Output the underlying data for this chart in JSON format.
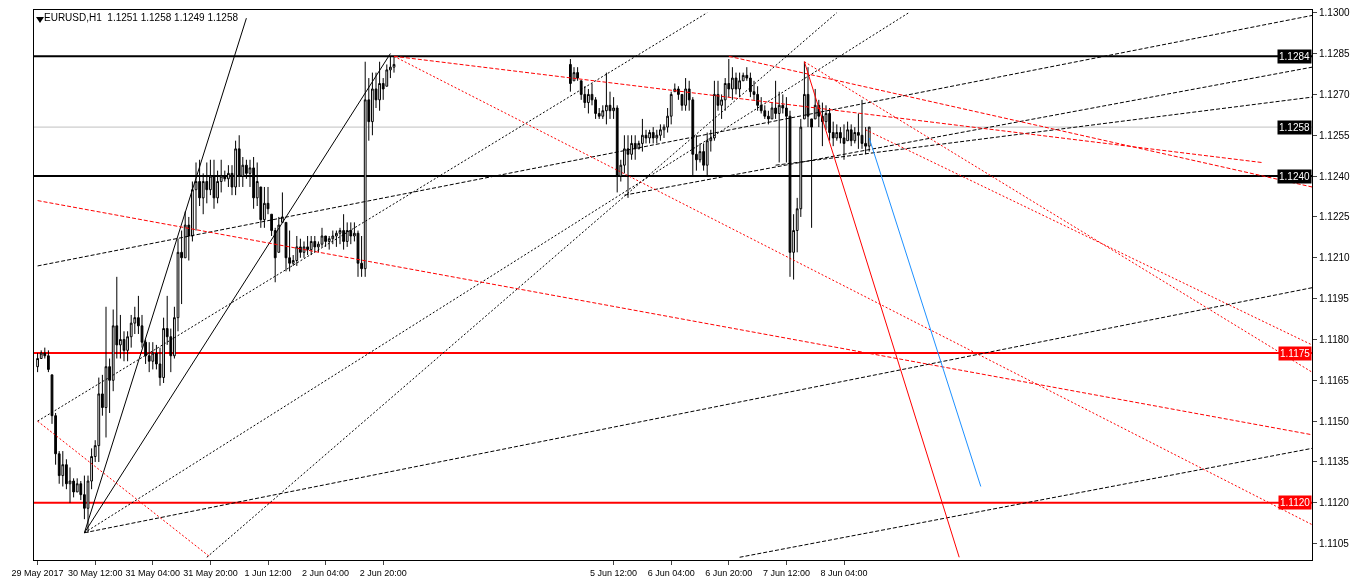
{
  "chart_data": {
    "type": "candlestick",
    "title": "EURUSD,H1  1.1251 1.1258 1.1249 1.1258",
    "color": "#000000",
    "x": [
      "2017-05-29T20:00",
      "2017-05-29T21:00",
      "2017-05-29T22:00",
      "2017-05-29T23:00",
      "2017-05-30T00:00",
      "2017-05-30T01:00",
      "2017-05-30T02:00",
      "2017-05-30T03:00",
      "2017-05-30T04:00",
      "2017-05-30T05:00",
      "2017-05-30T06:00",
      "2017-05-30T07:00",
      "2017-05-30T08:00",
      "2017-05-30T09:00",
      "2017-05-30T10:00",
      "2017-05-30T11:00",
      "2017-05-30T12:00",
      "2017-05-30T13:00",
      "2017-05-30T14:00",
      "2017-05-30T15:00",
      "2017-05-30T16:00",
      "2017-05-30T17:00",
      "2017-05-30T18:00",
      "2017-05-30T19:00",
      "2017-05-30T20:00",
      "2017-05-30T21:00",
      "2017-05-30T22:00",
      "2017-05-30T23:00",
      "2017-05-31T00:00",
      "2017-05-31T01:00",
      "2017-05-31T02:00",
      "2017-05-31T03:00",
      "2017-05-31T04:00",
      "2017-05-31T05:00",
      "2017-05-31T06:00",
      "2017-05-31T07:00",
      "2017-05-31T08:00",
      "2017-05-31T09:00",
      "2017-05-31T10:00",
      "2017-05-31T11:00",
      "2017-05-31T12:00",
      "2017-05-31T13:00",
      "2017-05-31T14:00",
      "2017-05-31T15:00",
      "2017-05-31T16:00",
      "2017-05-31T17:00",
      "2017-05-31T18:00",
      "2017-05-31T19:00",
      "2017-05-31T20:00",
      "2017-05-31T21:00",
      "2017-05-31T22:00",
      "2017-05-31T23:00",
      "2017-06-01T00:00",
      "2017-06-01T01:00",
      "2017-06-01T02:00",
      "2017-06-01T03:00",
      "2017-06-01T04:00",
      "2017-06-01T05:00",
      "2017-06-01T06:00",
      "2017-06-01T07:00",
      "2017-06-01T08:00",
      "2017-06-01T09:00",
      "2017-06-01T10:00",
      "2017-06-01T11:00",
      "2017-06-01T12:00",
      "2017-06-01T13:00",
      "2017-06-01T14:00",
      "2017-06-01T15:00",
      "2017-06-01T16:00",
      "2017-06-01T17:00",
      "2017-06-01T18:00",
      "2017-06-01T19:00",
      "2017-06-01T20:00",
      "2017-06-01T21:00",
      "2017-06-01T22:00",
      "2017-06-01T23:00",
      "2017-06-02T00:00",
      "2017-06-02T01:00",
      "2017-06-02T02:00",
      "2017-06-02T03:00",
      "2017-06-02T04:00",
      "2017-06-02T05:00",
      "2017-06-02T06:00",
      "2017-06-02T07:00",
      "2017-06-02T08:00",
      "2017-06-02T09:00",
      "2017-06-02T10:00",
      "2017-06-02T11:00",
      "2017-06-02T12:00",
      "2017-06-02T13:00",
      "2017-06-02T14:00",
      "2017-06-02T15:00",
      "2017-06-02T16:00",
      "2017-06-02T17:00",
      "2017-06-02T18:00",
      "2017-06-02T19:00",
      "2017-06-02T20:00",
      "2017-06-02T21:00",
      "2017-06-02T22:00",
      "2017-06-02T23:00",
      "2017-06-05T00:00",
      "2017-06-05T01:00",
      "2017-06-05T02:00",
      "2017-06-05T03:00",
      "2017-06-05T04:00",
      "2017-06-05T05:00",
      "2017-06-05T06:00",
      "2017-06-05T07:00",
      "2017-06-05T08:00",
      "2017-06-05T09:00",
      "2017-06-05T10:00",
      "2017-06-05T11:00",
      "2017-06-05T12:00",
      "2017-06-05T13:00",
      "2017-06-05T14:00",
      "2017-06-05T15:00",
      "2017-06-05T16:00",
      "2017-06-05T17:00",
      "2017-06-05T18:00",
      "2017-06-05T19:00",
      "2017-06-05T20:00",
      "2017-06-05T21:00",
      "2017-06-05T22:00",
      "2017-06-05T23:00",
      "2017-06-06T00:00",
      "2017-06-06T01:00",
      "2017-06-06T02:00",
      "2017-06-06T03:00",
      "2017-06-06T04:00",
      "2017-06-06T05:00",
      "2017-06-06T06:00",
      "2017-06-06T07:00",
      "2017-06-06T08:00",
      "2017-06-06T09:00",
      "2017-06-06T10:00",
      "2017-06-06T11:00",
      "2017-06-06T12:00",
      "2017-06-06T13:00",
      "2017-06-06T14:00",
      "2017-06-06T15:00",
      "2017-06-06T16:00",
      "2017-06-06T17:00",
      "2017-06-06T18:00",
      "2017-06-06T19:00",
      "2017-06-06T20:00",
      "2017-06-06T21:00",
      "2017-06-06T22:00",
      "2017-06-06T23:00",
      "2017-06-07T00:00",
      "2017-06-07T01:00",
      "2017-06-07T02:00",
      "2017-06-07T03:00",
      "2017-06-07T04:00",
      "2017-06-07T05:00",
      "2017-06-07T06:00",
      "2017-06-07T07:00",
      "2017-06-07T08:00",
      "2017-06-07T09:00",
      "2017-06-07T10:00",
      "2017-06-07T11:00",
      "2017-06-07T12:00",
      "2017-06-07T13:00",
      "2017-06-07T14:00",
      "2017-06-07T15:00",
      "2017-06-07T16:00",
      "2017-06-07T17:00",
      "2017-06-07T18:00",
      "2017-06-07T19:00",
      "2017-06-07T20:00",
      "2017-06-07T21:00",
      "2017-06-07T22:00",
      "2017-06-07T23:00",
      "2017-06-08T00:00",
      "2017-06-08T01:00",
      "2017-06-08T02:00",
      "2017-06-08T03:00",
      "2017-06-08T04:00",
      "2017-06-08T05:00",
      "2017-06-08T06:00",
      "2017-06-08T07:00",
      "2017-06-08T08:00",
      "2017-06-08T09:00",
      "2017-06-08T10:00",
      "2017-06-08T11:00"
    ],
    "ohlc": [
      [
        1.117,
        1.1175,
        1.1168,
        1.1173
      ],
      [
        1.1173,
        1.1176,
        1.1173,
        1.1175
      ],
      [
        1.1175,
        1.1177,
        1.1173,
        1.1174
      ],
      [
        1.1174,
        1.1176,
        1.1168,
        1.1169
      ],
      [
        1.1167,
        1.1167,
        1.1149,
        1.1152
      ],
      [
        1.1152,
        1.1153,
        1.1134,
        1.1138
      ],
      [
        1.1138,
        1.1139,
        1.1127,
        1.113
      ],
      [
        1.113,
        1.1139,
        1.1126,
        1.1134
      ],
      [
        1.1134,
        1.1136,
        1.1125,
        1.1127
      ],
      [
        1.1127,
        1.1133,
        1.112,
        1.1128
      ],
      [
        1.1128,
        1.1129,
        1.1122,
        1.1124
      ],
      [
        1.1124,
        1.1129,
        1.1124,
        1.1127
      ],
      [
        1.1127,
        1.1128,
        1.1121,
        1.1123
      ],
      [
        1.1123,
        1.113,
        1.1114,
        1.1118
      ],
      [
        1.1118,
        1.113,
        1.1109,
        1.1128
      ],
      [
        1.1128,
        1.114,
        1.1125,
        1.1137
      ],
      [
        1.1137,
        1.1143,
        1.1135,
        1.1141
      ],
      [
        1.1141,
        1.1166,
        1.1135,
        1.116
      ],
      [
        1.116,
        1.1167,
        1.1152,
        1.1155
      ],
      [
        1.1155,
        1.1192,
        1.1144,
        1.117
      ],
      [
        1.117,
        1.1173,
        1.1153,
        1.1165
      ],
      [
        1.1165,
        1.1191,
        1.1161,
        1.1185
      ],
      [
        1.1185,
        1.1203,
        1.1173,
        1.1178
      ],
      [
        1.1178,
        1.1189,
        1.1173,
        1.118
      ],
      [
        1.118,
        1.1183,
        1.1172,
        1.1176
      ],
      [
        1.1176,
        1.1183,
        1.1172,
        1.1181
      ],
      [
        1.1181,
        1.1189,
        1.1177,
        1.1186
      ],
      [
        1.1186,
        1.1192,
        1.1182,
        1.1188
      ],
      [
        1.1188,
        1.1196,
        1.1182,
        1.1185
      ],
      [
        1.1185,
        1.1189,
        1.1177,
        1.1179
      ],
      [
        1.1179,
        1.118,
        1.1171,
        1.1174
      ],
      [
        1.1174,
        1.1179,
        1.1168,
        1.1172
      ],
      [
        1.1172,
        1.1179,
        1.1169,
        1.1175
      ],
      [
        1.1175,
        1.1178,
        1.1169,
        1.1171
      ],
      [
        1.1171,
        1.1177,
        1.1163,
        1.1166
      ],
      [
        1.1166,
        1.1188,
        1.1164,
        1.1184
      ],
      [
        1.1184,
        1.1196,
        1.1178,
        1.1181
      ],
      [
        1.1181,
        1.1184,
        1.1168,
        1.1174
      ],
      [
        1.1174,
        1.1192,
        1.1173,
        1.1188
      ],
      [
        1.1188,
        1.1217,
        1.1183,
        1.1212
      ],
      [
        1.1212,
        1.122,
        1.1193,
        1.121
      ],
      [
        1.121,
        1.1227,
        1.121,
        1.1222
      ],
      [
        1.1222,
        1.1225,
        1.1209,
        1.1218
      ],
      [
        1.1218,
        1.1238,
        1.1216,
        1.1235
      ],
      [
        1.1235,
        1.1245,
        1.122,
        1.1238
      ],
      [
        1.1238,
        1.1246,
        1.1229,
        1.1232
      ],
      [
        1.1232,
        1.1241,
        1.1226,
        1.1238
      ],
      [
        1.1238,
        1.1245,
        1.123,
        1.1235
      ],
      [
        1.1235,
        1.1246,
        1.1233,
        1.124
      ],
      [
        1.124,
        1.1246,
        1.1228,
        1.1232
      ],
      [
        1.1232,
        1.1242,
        1.123,
        1.1238
      ],
      [
        1.1238,
        1.1246,
        1.1234,
        1.124
      ],
      [
        1.124,
        1.1242,
        1.1238,
        1.1239
      ],
      [
        1.1239,
        1.1244,
        1.1236,
        1.1241
      ],
      [
        1.1241,
        1.1244,
        1.1233,
        1.1236
      ],
      [
        1.1236,
        1.1253,
        1.1233,
        1.125
      ],
      [
        1.125,
        1.1255,
        1.1236,
        1.124
      ],
      [
        1.124,
        1.1247,
        1.1236,
        1.1244
      ],
      [
        1.1244,
        1.1246,
        1.1239,
        1.1241
      ],
      [
        1.1241,
        1.1246,
        1.1236,
        1.1243
      ],
      [
        1.1243,
        1.1247,
        1.1228,
        1.1232
      ],
      [
        1.1232,
        1.1245,
        1.1229,
        1.1238
      ],
      [
        1.1236,
        1.1236,
        1.1221,
        1.1224
      ],
      [
        1.1224,
        1.1236,
        1.1221,
        1.123
      ],
      [
        1.123,
        1.1236,
        1.1226,
        1.1228
      ],
      [
        1.1226,
        1.1226,
        1.1218,
        1.122
      ],
      [
        1.122,
        1.1221,
        1.1201,
        1.121
      ],
      [
        1.1212,
        1.1225,
        1.1212,
        1.1222
      ],
      [
        1.1223,
        1.1234,
        1.1223,
        1.1225
      ],
      [
        1.1223,
        1.1223,
        1.1205,
        1.121
      ],
      [
        1.121,
        1.122,
        1.1205,
        1.1208
      ],
      [
        1.1208,
        1.1211,
        1.1207,
        1.1209
      ],
      [
        1.1209,
        1.1218,
        1.1207,
        1.1214
      ],
      [
        1.1214,
        1.1217,
        1.121,
        1.1212
      ],
      [
        1.1212,
        1.1216,
        1.121,
        1.1214
      ],
      [
        1.1214,
        1.1218,
        1.1211,
        1.1213
      ],
      [
        1.1213,
        1.1218,
        1.1211,
        1.1216
      ],
      [
        1.1216,
        1.1218,
        1.1212,
        1.1214
      ],
      [
        1.1214,
        1.1216,
        1.1212,
        1.1215
      ],
      [
        1.1215,
        1.1221,
        1.1214,
        1.1218
      ],
      [
        1.1218,
        1.1218,
        1.1214,
        1.1216
      ],
      [
        1.1216,
        1.1218,
        1.1213,
        1.1217
      ],
      [
        1.1217,
        1.122,
        1.1215,
        1.1218
      ],
      [
        1.1218,
        1.122,
        1.1214,
        1.1219
      ],
      [
        1.1219,
        1.1221,
        1.1215,
        1.122
      ],
      [
        1.122,
        1.1226,
        1.1213,
        1.1216
      ],
      [
        1.1216,
        1.1223,
        1.1214,
        1.122
      ],
      [
        1.122,
        1.1223,
        1.1215,
        1.1218
      ],
      [
        1.1218,
        1.1223,
        1.1216,
        1.1219
      ],
      [
        1.1219,
        1.122,
        1.1203,
        1.1208
      ],
      [
        1.1208,
        1.1218,
        1.1203,
        1.1206
      ],
      [
        1.1206,
        1.1282,
        1.1203,
        1.1268
      ],
      [
        1.1268,
        1.1276,
        1.1253,
        1.126
      ],
      [
        1.126,
        1.1278,
        1.1255,
        1.1272
      ],
      [
        1.1272,
        1.1278,
        1.1265,
        1.1268
      ],
      [
        1.1268,
        1.1282,
        1.1264,
        1.1274
      ],
      [
        1.1274,
        1.1276,
        1.1268,
        1.1272
      ],
      [
        1.1273,
        1.1281,
        1.1273,
        1.1279
      ],
      [
        1.1279,
        1.1284,
        1.1276,
        1.128
      ],
      [
        1.128,
        1.1284,
        1.1278,
        1.1281
      ],
      [
        1.1281,
        1.1283,
        1.1271,
        1.1274
      ],
      [
        1.1275,
        1.128,
        1.1275,
        1.1278
      ],
      [
        1.1278,
        1.128,
        1.1275,
        1.1276
      ],
      [
        1.1275,
        1.1275,
        1.1268,
        1.127
      ],
      [
        1.127,
        1.1273,
        1.1265,
        1.1267
      ],
      [
        1.1267,
        1.1272,
        1.1263,
        1.127
      ],
      [
        1.127,
        1.1274,
        1.1266,
        1.1268
      ],
      [
        1.1268,
        1.1269,
        1.1261,
        1.1263
      ],
      [
        1.1263,
        1.1265,
        1.1261,
        1.1262
      ],
      [
        1.1262,
        1.1266,
        1.1261,
        1.1264
      ],
      [
        1.1264,
        1.1278,
        1.1259,
        1.1266
      ],
      [
        1.1266,
        1.1271,
        1.1261,
        1.1264
      ],
      [
        1.1264,
        1.1269,
        1.1261,
        1.1265
      ],
      [
        1.1265,
        1.1266,
        1.1234,
        1.124
      ],
      [
        1.124,
        1.1246,
        1.1238,
        1.1244
      ],
      [
        1.1244,
        1.1255,
        1.1241,
        1.125
      ],
      [
        1.125,
        1.1255,
        1.1232,
        1.1248
      ],
      [
        1.1248,
        1.1255,
        1.1246,
        1.1252
      ],
      [
        1.1252,
        1.1255,
        1.1246,
        1.125
      ],
      [
        1.125,
        1.1253,
        1.125,
        1.1252
      ],
      [
        1.1252,
        1.1261,
        1.1249,
        1.1255
      ],
      [
        1.1255,
        1.1257,
        1.1252,
        1.1254
      ],
      [
        1.1254,
        1.1257,
        1.1252,
        1.1256
      ],
      [
        1.1256,
        1.1258,
        1.1252,
        1.1254
      ],
      [
        1.1254,
        1.1257,
        1.1252,
        1.1255
      ],
      [
        1.1255,
        1.1259,
        1.1253,
        1.1257
      ],
      [
        1.1257,
        1.1259,
        1.1254,
        1.1258
      ],
      [
        1.1258,
        1.1265,
        1.1256,
        1.1262
      ],
      [
        1.1262,
        1.1271,
        1.1259,
        1.127
      ],
      [
        1.1271,
        1.1274,
        1.1271,
        1.1272
      ],
      [
        1.1272,
        1.1273,
        1.1268,
        1.127
      ],
      [
        1.127,
        1.127,
        1.1264,
        1.1266
      ],
      [
        1.1266,
        1.1276,
        1.1264,
        1.1272
      ],
      [
        1.1272,
        1.1275,
        1.1264,
        1.1268
      ],
      [
        1.1268,
        1.1269,
        1.124,
        1.1248
      ],
      [
        1.1248,
        1.1255,
        1.1242,
        1.1246
      ],
      [
        1.1246,
        1.1252,
        1.1245,
        1.1249
      ],
      [
        1.1249,
        1.1252,
        1.1242,
        1.1244
      ],
      [
        1.1244,
        1.1256,
        1.124,
        1.1253
      ],
      [
        1.1253,
        1.1257,
        1.1249,
        1.1254
      ],
      [
        1.1254,
        1.1275,
        1.1253,
        1.127
      ],
      [
        1.127,
        1.1275,
        1.1264,
        1.1266
      ],
      [
        1.1266,
        1.127,
        1.1261,
        1.1268
      ],
      [
        1.1268,
        1.1276,
        1.1264,
        1.1274
      ],
      [
        1.1274,
        1.1283,
        1.1269,
        1.1272
      ],
      [
        1.1272,
        1.128,
        1.1268,
        1.1276
      ],
      [
        1.1276,
        1.1278,
        1.127,
        1.1272
      ],
      [
        1.1272,
        1.1278,
        1.1269,
        1.1275
      ],
      [
        1.1275,
        1.1278,
        1.1275,
        1.1277
      ],
      [
        1.1277,
        1.128,
        1.1275,
        1.1276
      ],
      [
        1.1276,
        1.1278,
        1.1269,
        1.1271
      ],
      [
        1.1271,
        1.1275,
        1.1268,
        1.127
      ],
      [
        1.127,
        1.1273,
        1.1264,
        1.1266
      ],
      [
        1.1266,
        1.1269,
        1.1263,
        1.1264
      ],
      [
        1.1264,
        1.1266,
        1.1261,
        1.1262
      ],
      [
        1.1262,
        1.1264,
        1.1259,
        1.1261
      ],
      [
        1.1261,
        1.1267,
        1.1261,
        1.1265
      ],
      [
        1.1265,
        1.1275,
        1.1261,
        1.1263
      ],
      [
        1.1263,
        1.1271,
        1.1245,
        1.1266
      ],
      [
        1.1266,
        1.127,
        1.1263,
        1.1265
      ],
      [
        1.1265,
        1.1269,
        1.1245,
        1.1262
      ],
      [
        1.1262,
        1.1264,
        1.1203,
        1.1212
      ],
      [
        1.1212,
        1.1226,
        1.1202,
        1.122
      ],
      [
        1.122,
        1.1232,
        1.1212,
        1.1228
      ],
      [
        1.1228,
        1.1261,
        1.1225,
        1.1258
      ],
      [
        1.1261,
        1.1282,
        1.1261,
        1.127
      ],
      [
        1.127,
        1.128,
        1.1258,
        1.1262
      ],
      [
        1.1261,
        1.1261,
        1.1221,
        1.1258
      ],
      [
        1.1261,
        1.1272,
        1.1261,
        1.1266
      ],
      [
        1.1266,
        1.1268,
        1.1258,
        1.1262
      ],
      [
        1.1262,
        1.1267,
        1.1251,
        1.126
      ],
      [
        1.126,
        1.1266,
        1.1257,
        1.1263
      ],
      [
        1.1263,
        1.1265,
        1.1253,
        1.1256
      ],
      [
        1.1256,
        1.126,
        1.1251,
        1.1254
      ],
      [
        1.1254,
        1.1259,
        1.1253,
        1.1256
      ],
      [
        1.1256,
        1.1258,
        1.1252,
        1.1254
      ],
      [
        1.1254,
        1.1259,
        1.1246,
        1.1252
      ],
      [
        1.1253,
        1.126,
        1.1253,
        1.1257
      ],
      [
        1.1257,
        1.1259,
        1.1251,
        1.1253
      ],
      [
        1.1253,
        1.1258,
        1.1252,
        1.1256
      ],
      [
        1.1256,
        1.1263,
        1.125,
        1.1255
      ],
      [
        1.1255,
        1.1268,
        1.125,
        1.1252
      ],
      [
        1.1252,
        1.1258,
        1.1248,
        1.1251
      ],
      [
        1.1251,
        1.1258,
        1.1249,
        1.1258
      ]
    ],
    "series": [
      {
        "type": "line",
        "x": [
          "2017-05-30T09:00",
          "2017-06-01T06:00"
        ],
        "values": [
          1.1109,
          1.1298
        ],
        "color": "#000000",
        "line_style": "solid"
      },
      {
        "type": "line",
        "x": [
          "2017-05-30T09:00",
          "2017-06-02T22:00"
        ],
        "values": [
          1.1109,
          1.1285
        ],
        "color": "#000000",
        "line_style": "solid"
      },
      {
        "type": "line",
        "x": [
          "2017-05-30T09:00",
          "2017-06-08T22:00"
        ],
        "values": [
          1.1109,
          1.13
        ],
        "color": "#000000",
        "line_style": "dotted"
      },
      {
        "type": "line",
        "x": [
          "2017-05-30T09:00",
          "2017-06-13T14:00"
        ],
        "values": [
          1.1109,
          1.1199
        ],
        "color": "#000000",
        "line_style": "dashed"
      },
      {
        "type": "line",
        "x": [
          "2017-06-06T23:00",
          "2017-06-13T14:00"
        ],
        "values": [
          1.11,
          1.114
        ],
        "color": "#000000",
        "line_style": "dashed"
      },
      {
        "type": "line",
        "x": [
          "2017-05-29T20:00",
          "2017-06-13T14:00"
        ],
        "values": [
          1.1207,
          1.1299
        ],
        "color": "#000000",
        "line_style": "dashed"
      },
      {
        "type": "line",
        "x": [
          "2017-06-05T15:00",
          "2017-06-13T14:00"
        ],
        "values": [
          1.1233,
          1.128
        ],
        "color": "#000000",
        "line_style": "dashed"
      },
      {
        "type": "line",
        "x": [
          "2017-06-07T09:00",
          "2017-06-13T14:00"
        ],
        "values": [
          1.1244,
          1.1269
        ],
        "color": "#000000",
        "line_style": "dashed"
      },
      {
        "type": "line",
        "x": [
          "2017-05-29T20:00",
          "2017-06-06T14:00"
        ],
        "values": [
          1.115,
          1.13
        ],
        "color": "#000000",
        "line_style": "dotted"
      },
      {
        "type": "line",
        "x": [
          "2017-05-31T19:00",
          "2017-06-08T02:00"
        ],
        "values": [
          1.11,
          1.13
        ],
        "color": "#000000",
        "line_style": "dotted"
      },
      {
        "type": "line",
        "x": [
          "2017-05-29T20:00",
          "2017-06-13T14:00"
        ],
        "values": [
          1.1231,
          1.1145
        ],
        "color": "#ff0000",
        "line_style": "dashed"
      },
      {
        "type": "line",
        "x": [
          "2017-06-02T23:00",
          "2017-06-13T00:00"
        ],
        "values": [
          1.1284,
          1.1245
        ],
        "color": "#ff0000",
        "line_style": "dashed"
      },
      {
        "type": "line",
        "x": [
          "2017-06-06T20:00",
          "2017-06-13T14:00"
        ],
        "values": [
          1.1284,
          1.1236
        ],
        "color": "#ff0000",
        "line_style": "dashed"
      },
      {
        "type": "line",
        "x": [
          "2017-06-02T23:00",
          "2017-06-13T14:00"
        ],
        "values": [
          1.1284,
          1.1112
        ],
        "color": "#ff0000",
        "line_style": "dotted"
      },
      {
        "type": "line",
        "x": [
          "2017-06-07T17:00",
          "2017-06-13T14:00"
        ],
        "values": [
          1.1282,
          1.1168
        ],
        "color": "#ff0000",
        "line_style": "dotted"
      },
      {
        "type": "line",
        "x": [
          "2017-06-08T10:00",
          "2017-06-13T14:00"
        ],
        "values": [
          1.1257,
          1.1178
        ],
        "color": "#ff0000",
        "line_style": "dotted"
      },
      {
        "type": "line",
        "x": [
          "2017-05-29T20:00",
          "2017-05-31T20:00"
        ],
        "values": [
          1.115,
          1.11
        ],
        "color": "#ff0000",
        "line_style": "dotted"
      },
      {
        "type": "line",
        "x": [
          "2017-06-07T17:00",
          "2017-06-09T12:00"
        ],
        "values": [
          1.1282,
          1.11
        ],
        "color": "#ff0000",
        "line_style": "solid"
      },
      {
        "type": "line",
        "x": [
          "2017-06-08T11:00",
          "2017-06-09T18:00"
        ],
        "values": [
          1.1254,
          1.1126
        ],
        "color": "#1e90ff",
        "line_style": "solid"
      }
    ],
    "ref_lines": [
      {
        "axis": "y",
        "value": 1.1284,
        "label": "1.1284",
        "color": "#000000"
      },
      {
        "axis": "y",
        "value": 1.1258,
        "label": "1.1258",
        "color": "#c0c0c0"
      },
      {
        "axis": "y",
        "value": 1.124,
        "label": "1.1240",
        "color": "#000000"
      },
      {
        "axis": "y",
        "value": 1.1175,
        "label": "1.1175",
        "color": "#ff0000"
      },
      {
        "axis": "y",
        "value": 1.112,
        "label": "1.1120",
        "color": "#ff0000"
      }
    ],
    "xlim": [
      "2017-05-29T19:00",
      "2017-06-13T14:00"
    ],
    "xticks": [
      {
        "value": "2017-05-29T20:00",
        "label": "29 May 2017"
      },
      {
        "value": "2017-05-30T12:00",
        "label": "30 May 12:00"
      },
      {
        "value": "2017-05-31T04:00",
        "label": "31 May 04:00"
      },
      {
        "value": "2017-05-31T20:00",
        "label": "31 May 20:00"
      },
      {
        "value": "2017-06-01T12:00",
        "label": "1 Jun 12:00"
      },
      {
        "value": "2017-06-02T04:00",
        "label": "2 Jun 04:00"
      },
      {
        "value": "2017-06-02T20:00",
        "label": "2 Jun 20:00"
      },
      {
        "value": "2017-06-05T12:00",
        "label": "5 Jun 12:00"
      },
      {
        "value": "2017-06-06T04:00",
        "label": "6 Jun 04:00"
      },
      {
        "value": "2017-06-06T20:00",
        "label": "6 Jun 20:00"
      },
      {
        "value": "2017-06-07T12:00",
        "label": "7 Jun 12:00"
      },
      {
        "value": "2017-06-08T04:00",
        "label": "8 Jun 04:00"
      }
    ],
    "ylim": [
      1.1099,
      1.1301
    ],
    "yticks": [
      1.1105,
      {
        "value": 1.112,
        "label": "1.1120"
      },
      1.1135,
      {
        "value": 1.115,
        "label": "1.1150"
      },
      1.1165,
      {
        "value": 1.118,
        "label": "1.1180"
      },
      1.1195,
      {
        "value": 1.121,
        "label": "1.1210"
      },
      1.1225,
      {
        "value": 1.124,
        "label": "1.1240"
      },
      1.1255,
      {
        "value": 1.127,
        "label": "1.1270"
      },
      1.1285,
      {
        "value": 1.13,
        "label": "1.1300"
      }
    ]
  }
}
